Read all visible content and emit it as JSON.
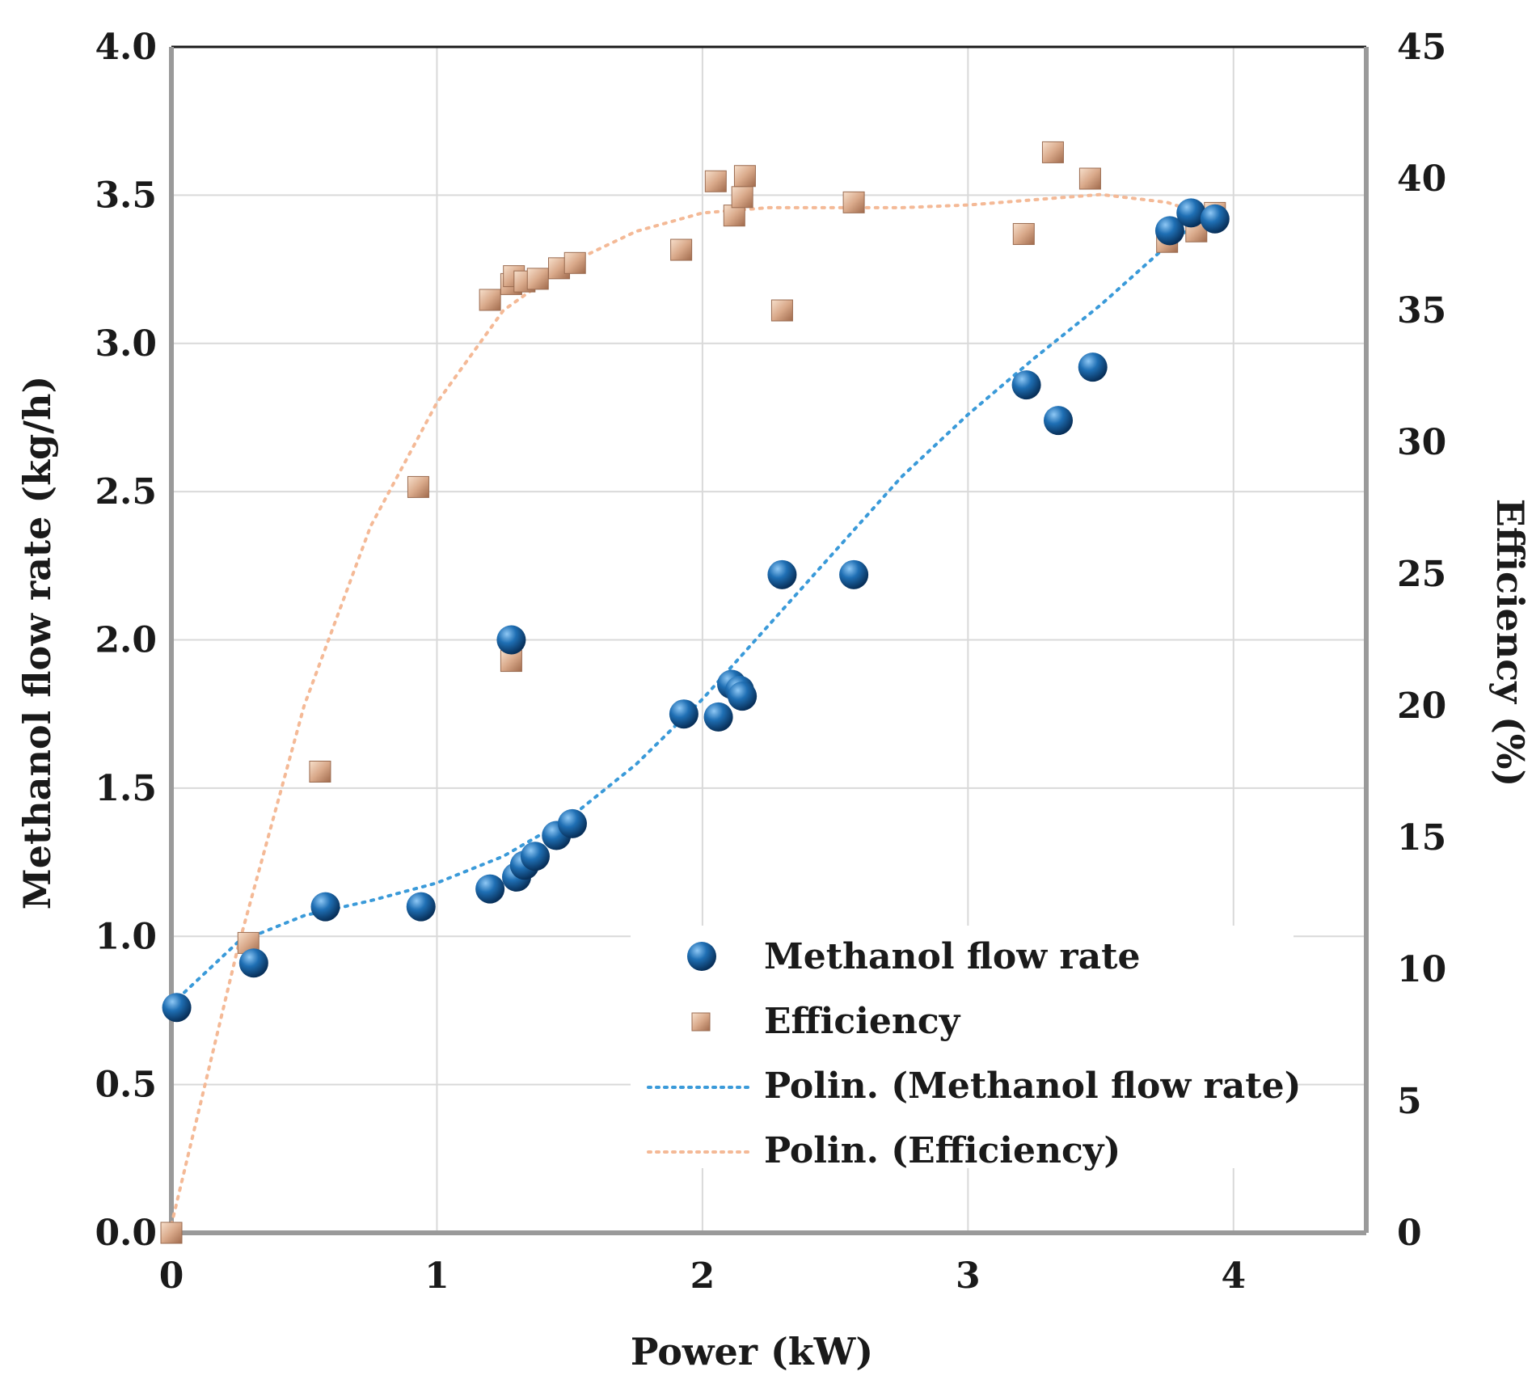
{
  "chart_data": {
    "type": "scatter",
    "xlabel": "Power (kW)",
    "ylabel_left": "Methanol flow rate (kg/h)",
    "ylabel_right": "Efficiency (%)",
    "xlim": [
      0,
      4.5
    ],
    "ylim_left": [
      0,
      4.0
    ],
    "ylim_right": [
      0,
      45
    ],
    "x_ticks": [
      "0",
      "1",
      "2",
      "3",
      "4"
    ],
    "y_left_ticks": [
      "0.0",
      "0.5",
      "1.0",
      "1.5",
      "2.0",
      "2.5",
      "3.0",
      "3.5",
      "4.0"
    ],
    "y_right_ticks": [
      "0",
      "5",
      "10",
      "15",
      "20",
      "25",
      "30",
      "35",
      "40",
      "45"
    ],
    "grid": true,
    "legend_position": "bottom-right",
    "series": [
      {
        "name": "Methanol flow rate",
        "axis": "left",
        "marker": "circle",
        "color": "#1f6fb4",
        "points": [
          [
            0.02,
            0.76
          ],
          [
            0.31,
            0.91
          ],
          [
            0.58,
            1.1
          ],
          [
            0.94,
            1.1
          ],
          [
            1.2,
            1.16
          ],
          [
            1.28,
            2.0
          ],
          [
            1.3,
            1.2
          ],
          [
            1.33,
            1.24
          ],
          [
            1.37,
            1.27
          ],
          [
            1.45,
            1.34
          ],
          [
            1.51,
            1.38
          ],
          [
            1.93,
            1.75
          ],
          [
            2.06,
            1.74
          ],
          [
            2.11,
            1.85
          ],
          [
            2.14,
            1.83
          ],
          [
            2.15,
            1.81
          ],
          [
            2.3,
            2.22
          ],
          [
            2.57,
            2.22
          ],
          [
            3.22,
            2.86
          ],
          [
            3.34,
            2.74
          ],
          [
            3.47,
            2.92
          ],
          [
            3.76,
            3.38
          ],
          [
            3.84,
            3.44
          ],
          [
            3.93,
            3.42
          ]
        ]
      },
      {
        "name": "Efficiency",
        "axis": "right",
        "marker": "square",
        "color": "#d9a98a",
        "points": [
          [
            0.0,
            0.0
          ],
          [
            0.29,
            11.0
          ],
          [
            0.56,
            17.5
          ],
          [
            0.93,
            28.3
          ],
          [
            1.2,
            35.4
          ],
          [
            1.28,
            36.0
          ],
          [
            1.29,
            36.3
          ],
          [
            1.33,
            36.1
          ],
          [
            1.38,
            36.2
          ],
          [
            1.46,
            36.6
          ],
          [
            1.52,
            36.8
          ],
          [
            1.28,
            21.7
          ],
          [
            1.92,
            37.3
          ],
          [
            2.05,
            39.9
          ],
          [
            2.12,
            38.6
          ],
          [
            2.15,
            39.3
          ],
          [
            2.16,
            40.1
          ],
          [
            2.3,
            35.0
          ],
          [
            2.57,
            39.1
          ],
          [
            3.21,
            37.9
          ],
          [
            3.32,
            41.0
          ],
          [
            3.46,
            40.0
          ],
          [
            3.75,
            37.6
          ],
          [
            3.86,
            38.0
          ],
          [
            3.93,
            38.7
          ]
        ]
      },
      {
        "name": "Polin. (Methanol flow rate)",
        "axis": "left",
        "type": "dotted-line",
        "color": "#3a9ad9",
        "points": [
          [
            0.0,
            0.77
          ],
          [
            0.25,
            0.98
          ],
          [
            0.5,
            1.07
          ],
          [
            0.75,
            1.12
          ],
          [
            1.0,
            1.18
          ],
          [
            1.25,
            1.27
          ],
          [
            1.5,
            1.4
          ],
          [
            1.75,
            1.58
          ],
          [
            2.0,
            1.8
          ],
          [
            2.25,
            2.05
          ],
          [
            2.5,
            2.3
          ],
          [
            2.75,
            2.55
          ],
          [
            3.0,
            2.76
          ],
          [
            3.25,
            2.95
          ],
          [
            3.5,
            3.13
          ],
          [
            3.75,
            3.33
          ],
          [
            3.93,
            3.45
          ]
        ]
      },
      {
        "name": "Polin. (Efficiency)",
        "axis": "right",
        "type": "dotted-line",
        "color": "#f4b996",
        "points": [
          [
            0.0,
            0.3
          ],
          [
            0.25,
            10.8
          ],
          [
            0.5,
            20.0
          ],
          [
            0.75,
            26.8
          ],
          [
            1.0,
            31.5
          ],
          [
            1.25,
            35.0
          ],
          [
            1.5,
            36.8
          ],
          [
            1.75,
            38.0
          ],
          [
            2.0,
            38.7
          ],
          [
            2.25,
            38.9
          ],
          [
            2.5,
            38.9
          ],
          [
            2.75,
            38.9
          ],
          [
            3.0,
            39.0
          ],
          [
            3.25,
            39.2
          ],
          [
            3.5,
            39.4
          ],
          [
            3.75,
            39.1
          ],
          [
            3.93,
            38.5
          ]
        ]
      }
    ]
  }
}
